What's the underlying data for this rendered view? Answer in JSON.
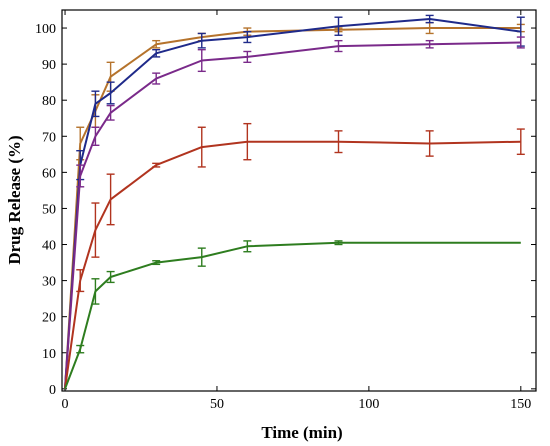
{
  "chart_data": {
    "type": "line",
    "xlabel": "Time (min)",
    "ylabel": "Drug Release (%)",
    "xlim": [
      0,
      150
    ],
    "ylim": [
      0,
      105
    ],
    "x_ticks": [
      0,
      50,
      100,
      150
    ],
    "y_ticks": [
      0,
      10,
      20,
      30,
      40,
      50,
      60,
      70,
      80,
      90,
      100
    ],
    "grid": false,
    "x": [
      0,
      5,
      10,
      15,
      30,
      45,
      60,
      90,
      120,
      150
    ],
    "series": [
      {
        "color": "#b5732c",
        "values": [
          0,
          68,
          77,
          86.5,
          95.5,
          97.5,
          99,
          99.5,
          100,
          100
        ],
        "errors": [
          0,
          4.5,
          4.5,
          4,
          1,
          1,
          1,
          0.5,
          1.5,
          1
        ]
      },
      {
        "color": "#1f2a8a",
        "values": [
          0,
          62,
          79,
          82,
          93,
          96.5,
          97.5,
          100.5,
          102.5,
          99
        ],
        "errors": [
          0,
          4,
          3.5,
          3,
          1,
          2,
          1.5,
          2.5,
          1,
          4
        ]
      },
      {
        "color": "#7a2a8a",
        "values": [
          0,
          59,
          70,
          76.5,
          86,
          91,
          92,
          95,
          95.5,
          96
        ],
        "errors": [
          0,
          3,
          2.5,
          2,
          1.5,
          3,
          1.5,
          1.5,
          1,
          1.5
        ]
      },
      {
        "color": "#b1341f",
        "values": [
          0,
          30,
          44,
          52.5,
          62,
          67,
          68.5,
          68.5,
          68,
          68.5
        ],
        "errors": [
          0,
          3,
          7.5,
          7,
          0.5,
          5.5,
          5,
          3,
          3.5,
          3.5
        ]
      },
      {
        "color": "#2e7d1f",
        "values": [
          0,
          11,
          27,
          31,
          35,
          36.5,
          39.5,
          40.5,
          40.5,
          40.5
        ],
        "errors": [
          0,
          1,
          3.5,
          1.5,
          0.5,
          2.5,
          1.5,
          0.5,
          0,
          0
        ]
      }
    ]
  }
}
